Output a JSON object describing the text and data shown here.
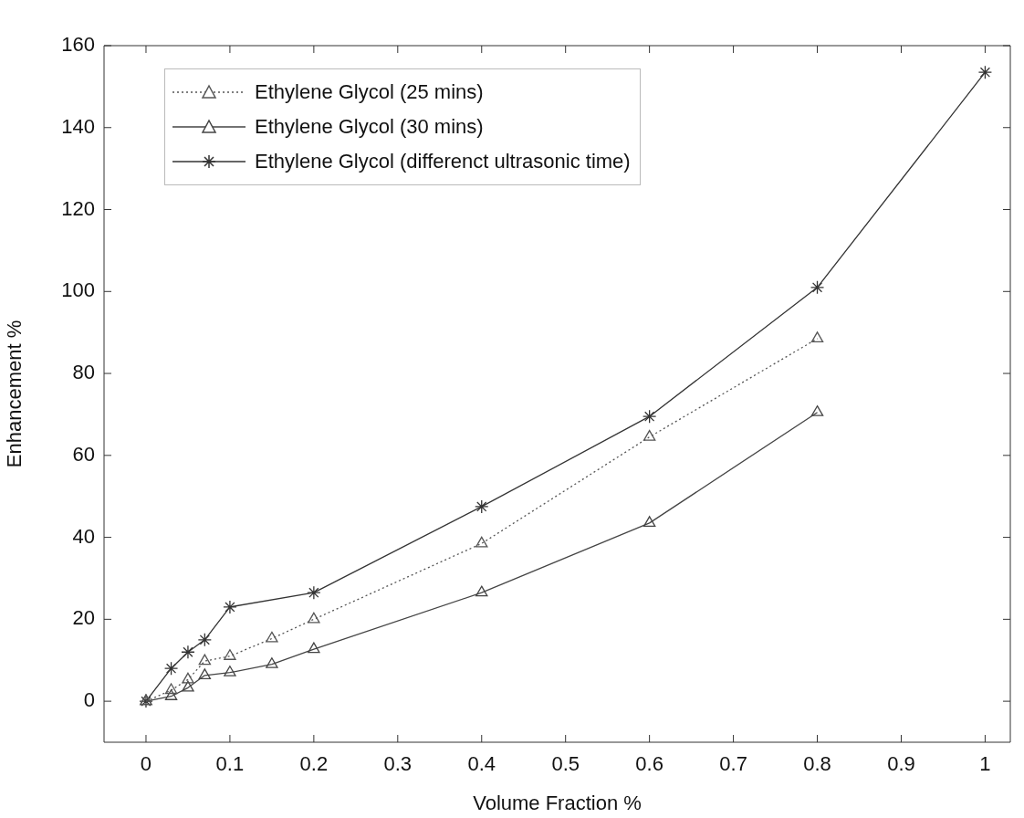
{
  "chart_data": {
    "type": "line",
    "xlabel": "Volume Fraction %",
    "ylabel": "Enhancement %",
    "xlim": [
      -0.05,
      1.03
    ],
    "ylim": [
      -10,
      160
    ],
    "xticks": [
      0,
      0.1,
      0.2,
      0.3,
      0.4,
      0.5,
      0.6,
      0.7,
      0.8,
      0.9,
      1
    ],
    "yticks": [
      0,
      20,
      40,
      60,
      80,
      100,
      120,
      140,
      160
    ],
    "grid": false,
    "legend": "top left",
    "series": [
      {
        "name": "Ethylene Glycol (25 mins)",
        "color": "#555555",
        "marker": "triangle",
        "line_style": "dotted",
        "x": [
          0,
          0.03,
          0.05,
          0.07,
          0.1,
          0.15,
          0.2,
          0.4,
          0.6,
          0.8
        ],
        "values": [
          0,
          2.7,
          5.3,
          9.8,
          11,
          15.3,
          20,
          38.5,
          64.5,
          88.5
        ]
      },
      {
        "name": "Ethylene Glycol (30 mins)",
        "color": "#444444",
        "marker": "triangle",
        "line_style": "solid",
        "x": [
          0,
          0.03,
          0.05,
          0.07,
          0.1,
          0.15,
          0.2,
          0.4,
          0.6,
          0.8
        ],
        "values": [
          0,
          1.2,
          3.3,
          6.3,
          7,
          9,
          12.7,
          26.5,
          43.5,
          70.5
        ]
      },
      {
        "name": "Ethylene Glycol (differenct ultrasonic time)",
        "color": "#333333",
        "marker": "cross",
        "line_style": "solid",
        "x": [
          0,
          0.03,
          0.05,
          0.07,
          0.1,
          0.2,
          0.4,
          0.6,
          0.8,
          1
        ],
        "values": [
          0,
          8,
          12,
          15,
          23,
          26.5,
          47.5,
          69.5,
          101,
          153.5
        ]
      }
    ]
  }
}
